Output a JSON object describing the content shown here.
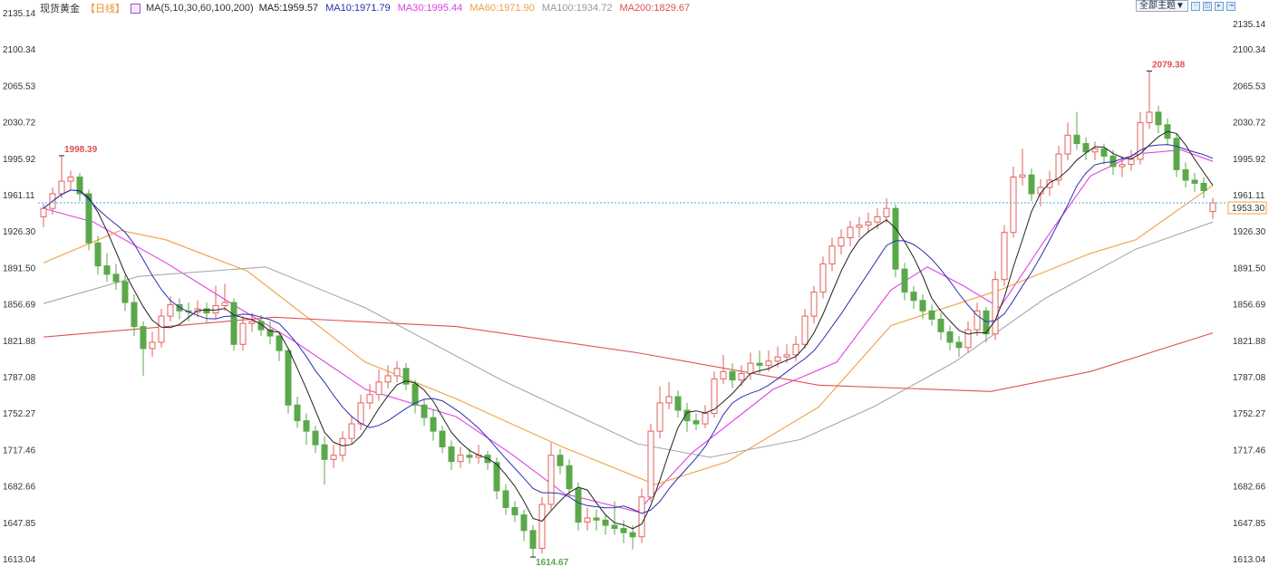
{
  "header": {
    "instrument": "现货黄金",
    "period": "【日线】",
    "ma_icon": "ma-settings-icon",
    "ma_params": "MA(5,10,30,60,100,200)",
    "ma_values": [
      {
        "label": "MA5:1959.57",
        "color": "#222222"
      },
      {
        "label": "MA10:1971.79",
        "color": "#2b2fb0"
      },
      {
        "label": "MA30:1995.44",
        "color": "#e040e0"
      },
      {
        "label": "MA60:1971.90",
        "color": "#f0a040"
      },
      {
        "label": "MA100:1934.72",
        "color": "#999999"
      },
      {
        "label": "MA200:1829.67",
        "color": "#e05050"
      }
    ]
  },
  "toolbar": {
    "theme_select": "全部主题▼",
    "icons": [
      "fullscreen-icon",
      "split-view-icon",
      "scroll-right-icon",
      "scroll-end-icon"
    ]
  },
  "chart_data": {
    "type": "candlestick",
    "ylim": [
      1613.04,
      2135.14
    ],
    "yticks": [
      "2135.14",
      "2100.34",
      "2065.53",
      "2030.72",
      "1995.92",
      "1961.11",
      "1926.30",
      "1891.50",
      "1856.69",
      "1821.88",
      "1787.08",
      "1752.27",
      "1717.46",
      "1682.66",
      "1647.85",
      "1613.04"
    ],
    "colors": {
      "up": "#e0625a",
      "down": "#5aa84a",
      "last_price_line": "#4aa8e0",
      "last_price_label": "#f0a040"
    },
    "last_price": "1953.30",
    "annotations": [
      {
        "index": 2,
        "label": "1998.39",
        "color": "#e05050"
      },
      {
        "index": 54,
        "label": "1614.67",
        "color": "#5aa84a"
      },
      {
        "index": 122,
        "label": "2079.38",
        "color": "#e05050"
      }
    ],
    "ohlc": [
      [
        1940,
        1952,
        1930,
        1948
      ],
      [
        1948,
        1968,
        1942,
        1962
      ],
      [
        1962,
        1998.39,
        1958,
        1974
      ],
      [
        1974,
        1984,
        1966,
        1978
      ],
      [
        1978,
        1982,
        1955,
        1962
      ],
      [
        1962,
        1966,
        1908,
        1915
      ],
      [
        1915,
        1922,
        1885,
        1893
      ],
      [
        1893,
        1905,
        1878,
        1885
      ],
      [
        1885,
        1895,
        1870,
        1878
      ],
      [
        1878,
        1884,
        1850,
        1858
      ],
      [
        1858,
        1866,
        1826,
        1835
      ],
      [
        1835,
        1840,
        1788,
        1814
      ],
      [
        1814,
        1830,
        1806,
        1820
      ],
      [
        1820,
        1852,
        1815,
        1845
      ],
      [
        1845,
        1864,
        1840,
        1856
      ],
      [
        1856,
        1862,
        1842,
        1850
      ],
      [
        1850,
        1858,
        1840,
        1849
      ],
      [
        1849,
        1860,
        1844,
        1852
      ],
      [
        1852,
        1858,
        1838,
        1848
      ],
      [
        1848,
        1874,
        1842,
        1855
      ],
      [
        1855,
        1876,
        1850,
        1858
      ],
      [
        1858,
        1862,
        1812,
        1818
      ],
      [
        1818,
        1845,
        1812,
        1838
      ],
      [
        1838,
        1848,
        1830,
        1840
      ],
      [
        1840,
        1846,
        1826,
        1832
      ],
      [
        1832,
        1840,
        1818,
        1826
      ],
      [
        1826,
        1830,
        1802,
        1812
      ],
      [
        1812,
        1815,
        1752,
        1760
      ],
      [
        1760,
        1768,
        1738,
        1745
      ],
      [
        1745,
        1752,
        1722,
        1735
      ],
      [
        1735,
        1740,
        1714,
        1722
      ],
      [
        1722,
        1730,
        1684,
        1708
      ],
      [
        1708,
        1722,
        1700,
        1712
      ],
      [
        1712,
        1735,
        1706,
        1728
      ],
      [
        1728,
        1750,
        1722,
        1742
      ],
      [
        1742,
        1770,
        1736,
        1762
      ],
      [
        1762,
        1780,
        1756,
        1770
      ],
      [
        1770,
        1794,
        1764,
        1782
      ],
      [
        1782,
        1798,
        1776,
        1788
      ],
      [
        1788,
        1802,
        1782,
        1795
      ],
      [
        1795,
        1800,
        1774,
        1780
      ],
      [
        1780,
        1784,
        1752,
        1760
      ],
      [
        1760,
        1766,
        1740,
        1748
      ],
      [
        1748,
        1756,
        1726,
        1735
      ],
      [
        1735,
        1740,
        1714,
        1720
      ],
      [
        1720,
        1726,
        1698,
        1706
      ],
      [
        1706,
        1720,
        1700,
        1712
      ],
      [
        1712,
        1718,
        1704,
        1710
      ],
      [
        1710,
        1722,
        1704,
        1712
      ],
      [
        1712,
        1716,
        1698,
        1705
      ],
      [
        1705,
        1710,
        1670,
        1678
      ],
      [
        1678,
        1684,
        1655,
        1662
      ],
      [
        1662,
        1668,
        1648,
        1655
      ],
      [
        1655,
        1660,
        1630,
        1640
      ],
      [
        1640,
        1645,
        1614.67,
        1623
      ],
      [
        1623,
        1672,
        1618,
        1665
      ],
      [
        1665,
        1724,
        1660,
        1712
      ],
      [
        1712,
        1718,
        1694,
        1702
      ],
      [
        1702,
        1708,
        1672,
        1680
      ],
      [
        1680,
        1686,
        1640,
        1648
      ],
      [
        1648,
        1662,
        1640,
        1652
      ],
      [
        1652,
        1660,
        1640,
        1650
      ],
      [
        1650,
        1656,
        1636,
        1645
      ],
      [
        1645,
        1668,
        1636,
        1642
      ],
      [
        1642,
        1650,
        1628,
        1638
      ],
      [
        1638,
        1645,
        1622,
        1634
      ],
      [
        1634,
        1680,
        1628,
        1672
      ],
      [
        1672,
        1742,
        1668,
        1735
      ],
      [
        1735,
        1778,
        1728,
        1762
      ],
      [
        1762,
        1782,
        1756,
        1768
      ],
      [
        1768,
        1774,
        1748,
        1755
      ],
      [
        1755,
        1762,
        1734,
        1745
      ],
      [
        1745,
        1752,
        1736,
        1742
      ],
      [
        1742,
        1760,
        1738,
        1752
      ],
      [
        1752,
        1792,
        1748,
        1785
      ],
      [
        1785,
        1808,
        1780,
        1792
      ],
      [
        1792,
        1800,
        1776,
        1784
      ],
      [
        1784,
        1798,
        1778,
        1790
      ],
      [
        1790,
        1810,
        1784,
        1800
      ],
      [
        1800,
        1812,
        1790,
        1798
      ],
      [
        1798,
        1812,
        1792,
        1802
      ],
      [
        1802,
        1816,
        1796,
        1806
      ],
      [
        1806,
        1818,
        1800,
        1808
      ],
      [
        1808,
        1826,
        1802,
        1818
      ],
      [
        1818,
        1852,
        1814,
        1845
      ],
      [
        1845,
        1874,
        1838,
        1868
      ],
      [
        1868,
        1902,
        1862,
        1895
      ],
      [
        1895,
        1920,
        1888,
        1912
      ],
      [
        1912,
        1928,
        1904,
        1920
      ],
      [
        1920,
        1936,
        1912,
        1930
      ],
      [
        1930,
        1940,
        1920,
        1932
      ],
      [
        1932,
        1944,
        1924,
        1935
      ],
      [
        1935,
        1948,
        1928,
        1940
      ],
      [
        1940,
        1958,
        1934,
        1948
      ],
      [
        1948,
        1952,
        1882,
        1890
      ],
      [
        1890,
        1896,
        1860,
        1868
      ],
      [
        1868,
        1874,
        1852,
        1860
      ],
      [
        1860,
        1866,
        1842,
        1850
      ],
      [
        1850,
        1856,
        1836,
        1842
      ],
      [
        1842,
        1848,
        1822,
        1830
      ],
      [
        1830,
        1836,
        1812,
        1820
      ],
      [
        1820,
        1826,
        1806,
        1815
      ],
      [
        1815,
        1840,
        1810,
        1832
      ],
      [
        1832,
        1858,
        1826,
        1850
      ],
      [
        1850,
        1854,
        1820,
        1828
      ],
      [
        1828,
        1888,
        1822,
        1880
      ],
      [
        1880,
        1932,
        1874,
        1925
      ],
      [
        1925,
        1988,
        1920,
        1978
      ],
      [
        1978,
        2005,
        1970,
        1980
      ],
      [
        1980,
        1986,
        1955,
        1962
      ],
      [
        1962,
        1976,
        1950,
        1968
      ],
      [
        1968,
        1984,
        1960,
        1975
      ],
      [
        1975,
        2008,
        1970,
        2000
      ],
      [
        2000,
        2030,
        1994,
        2018
      ],
      [
        2018,
        2040,
        2004,
        2010
      ],
      [
        2010,
        2016,
        1994,
        2002
      ],
      [
        2002,
        2012,
        1994,
        2005
      ],
      [
        2005,
        2010,
        1990,
        1998
      ],
      [
        1998,
        2004,
        1980,
        1988
      ],
      [
        1988,
        1998,
        1978,
        1990
      ],
      [
        1990,
        2004,
        1984,
        1995
      ],
      [
        1995,
        2040,
        1990,
        2030
      ],
      [
        2030,
        2079.38,
        2024,
        2040
      ],
      [
        2040,
        2046,
        2020,
        2028
      ],
      [
        2028,
        2034,
        2008,
        2015
      ],
      [
        2015,
        2020,
        1978,
        1985
      ],
      [
        1985,
        1992,
        1968,
        1975
      ],
      [
        1975,
        1982,
        1964,
        1972
      ],
      [
        1972,
        1978,
        1958,
        1965
      ],
      [
        1945,
        1958,
        1938,
        1953.3
      ]
    ],
    "ma_series": [
      {
        "name": "MA30",
        "color": "#e040e0",
        "points": [
          [
            0,
            1948
          ],
          [
            5.5,
            1935
          ],
          [
            13.5,
            1896
          ],
          [
            21.5,
            1853
          ],
          [
            27.5,
            1822
          ],
          [
            35.5,
            1775
          ],
          [
            45.5,
            1749
          ],
          [
            51.5,
            1714
          ],
          [
            57.5,
            1675
          ],
          [
            65.5,
            1658
          ],
          [
            71.5,
            1714
          ],
          [
            80.5,
            1775
          ],
          [
            87.5,
            1801
          ],
          [
            93.5,
            1870
          ],
          [
            97.5,
            1892
          ],
          [
            101.5,
            1874
          ],
          [
            105.5,
            1853
          ],
          [
            110.5,
            1918
          ],
          [
            115.5,
            1979
          ],
          [
            120.5,
            2000
          ],
          [
            125.5,
            2004
          ],
          [
            129,
            1993
          ]
        ]
      },
      {
        "name": "MA60",
        "color": "#f0a040",
        "points": [
          [
            0,
            1896
          ],
          [
            8.5,
            1927
          ],
          [
            13.5,
            1918
          ],
          [
            22.5,
            1888
          ],
          [
            35.5,
            1801
          ],
          [
            45.5,
            1766
          ],
          [
            57.5,
            1719
          ],
          [
            67.5,
            1684
          ],
          [
            75.5,
            1706
          ],
          [
            85.5,
            1758
          ],
          [
            93.5,
            1836
          ],
          [
            105.5,
            1870
          ],
          [
            115.5,
            1905
          ],
          [
            120.5,
            1918
          ],
          [
            129,
            1970
          ]
        ]
      },
      {
        "name": "MA100",
        "color": "#a8a8a8",
        "points": [
          [
            0,
            1857
          ],
          [
            10.5,
            1883
          ],
          [
            24.5,
            1892
          ],
          [
            35.5,
            1853
          ],
          [
            50.5,
            1784
          ],
          [
            65.5,
            1723
          ],
          [
            73.5,
            1710
          ],
          [
            83.5,
            1727
          ],
          [
            91.5,
            1758
          ],
          [
            100.5,
            1801
          ],
          [
            110.5,
            1862
          ],
          [
            120.5,
            1909
          ],
          [
            129,
            1935
          ]
        ]
      },
      {
        "name": "MA200",
        "color": "#e05050",
        "points": [
          [
            0,
            1825
          ],
          [
            25.5,
            1844
          ],
          [
            45.5,
            1835
          ],
          [
            65.5,
            1810
          ],
          [
            85.5,
            1779
          ],
          [
            104.5,
            1773
          ],
          [
            115.5,
            1792
          ],
          [
            129,
            1829
          ]
        ]
      }
    ]
  }
}
